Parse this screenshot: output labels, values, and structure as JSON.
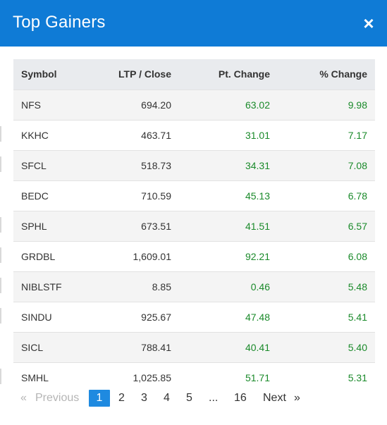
{
  "modal": {
    "title": "Top Gainers",
    "close_label": "×"
  },
  "table": {
    "headers": {
      "symbol": "Symbol",
      "ltp": "LTP / Close",
      "pt_change": "Pt. Change",
      "pct_change": "% Change"
    },
    "rows": [
      {
        "symbol": "NFS",
        "ltp": "694.20",
        "pt_change": "63.02",
        "pct_change": "9.98"
      },
      {
        "symbol": "KKHC",
        "ltp": "463.71",
        "pt_change": "31.01",
        "pct_change": "7.17"
      },
      {
        "symbol": "SFCL",
        "ltp": "518.73",
        "pt_change": "34.31",
        "pct_change": "7.08"
      },
      {
        "symbol": "BEDC",
        "ltp": "710.59",
        "pt_change": "45.13",
        "pct_change": "6.78"
      },
      {
        "symbol": "SPHL",
        "ltp": "673.51",
        "pt_change": "41.51",
        "pct_change": "6.57"
      },
      {
        "symbol": "GRDBL",
        "ltp": "1,609.01",
        "pt_change": "92.21",
        "pct_change": "6.08"
      },
      {
        "symbol": "NIBLSTF",
        "ltp": "8.85",
        "pt_change": "0.46",
        "pct_change": "5.48"
      },
      {
        "symbol": "SINDU",
        "ltp": "925.67",
        "pt_change": "47.48",
        "pct_change": "5.41"
      },
      {
        "symbol": "SICL",
        "ltp": "788.41",
        "pt_change": "40.41",
        "pct_change": "5.40"
      },
      {
        "symbol": "SMHL",
        "ltp": "1,025.85",
        "pt_change": "51.71",
        "pct_change": "5.31"
      }
    ]
  },
  "pagination": {
    "prev_arrow": "«",
    "prev_label": "Previous",
    "pages": [
      "1",
      "2",
      "3",
      "4",
      "5"
    ],
    "ellipsis": "...",
    "last_page": "16",
    "next_label": "Next",
    "next_arrow": "»",
    "current_page": "1"
  },
  "colors": {
    "header_bg": "#0f7bd6",
    "positive_change": "#1a8a2a",
    "active_page": "#1f8ae0"
  }
}
